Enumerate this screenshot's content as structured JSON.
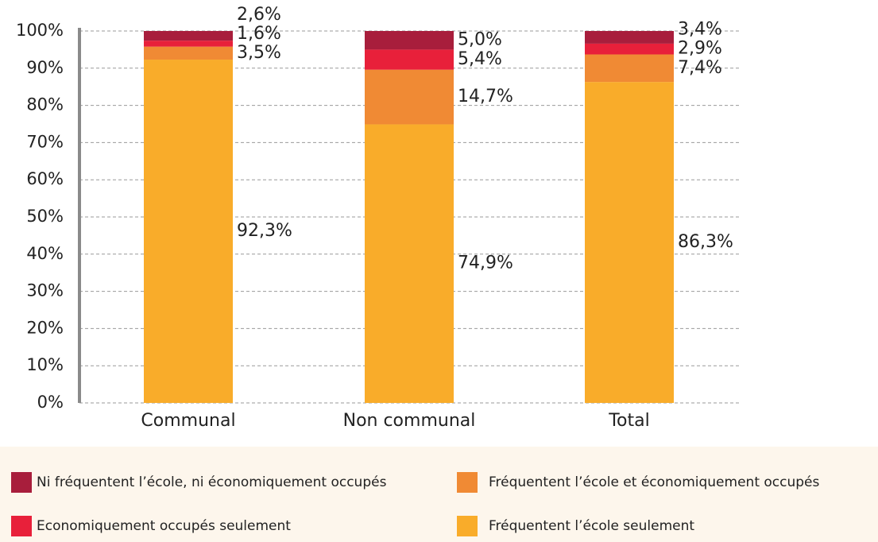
{
  "chart_data": {
    "type": "stacked_bar",
    "categories": [
      "Communal",
      "Non communal",
      "Total"
    ],
    "series": [
      {
        "name": "Fréquentent l’école seulement",
        "color": "#f9ac2a",
        "values": [
          92.3,
          74.9,
          86.3
        ],
        "value_labels": [
          "92,3%",
          "74,9%",
          "86,3%"
        ]
      },
      {
        "name": "Fréquentent l’école et  économiquement occupés",
        "color": "#f08a34",
        "values": [
          3.5,
          14.7,
          7.4
        ],
        "value_labels": [
          "3,5%",
          "14,7%",
          "7,4%"
        ]
      },
      {
        "name": "Economiquement occupés seulement",
        "color": "#e8203a",
        "values": [
          1.6,
          5.4,
          2.9
        ],
        "value_labels": [
          "1,6%",
          "5,4%",
          "2,9%"
        ]
      },
      {
        "name": "Ni fréquentent l’école, ni  économiquement occupés",
        "color": "#a81e3c",
        "values": [
          2.6,
          5.0,
          3.4
        ],
        "value_labels": [
          "2,6%",
          "5,0%",
          "3,4%"
        ]
      }
    ],
    "ylim": [
      0,
      100
    ],
    "yticks": [
      {
        "value": 0,
        "label": "0%"
      },
      {
        "value": 10,
        "label": "10%"
      },
      {
        "value": 20,
        "label": "20%"
      },
      {
        "value": 30,
        "label": "30%"
      },
      {
        "value": 40,
        "label": "40%"
      },
      {
        "value": 50,
        "label": "50%"
      },
      {
        "value": 60,
        "label": "60%"
      },
      {
        "value": 70,
        "label": "70%"
      },
      {
        "value": 80,
        "label": "80%"
      },
      {
        "value": 90,
        "label": "90%"
      },
      {
        "value": 100,
        "label": "100%"
      }
    ],
    "grid": true
  }
}
